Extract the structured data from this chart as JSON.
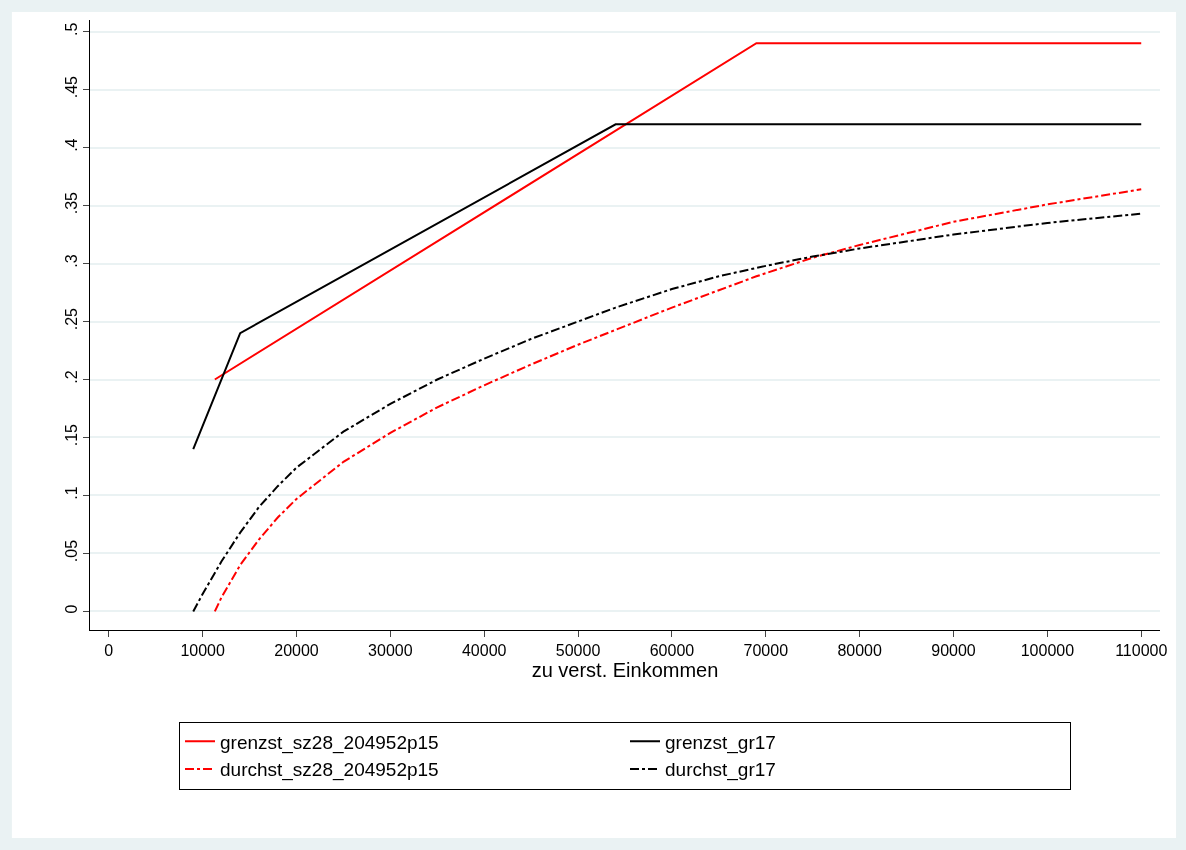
{
  "chart_data": {
    "type": "line",
    "xlabel": "zu verst. Einkommen",
    "xlim": [
      -2000,
      112000
    ],
    "xticks": [
      0,
      10000,
      20000,
      30000,
      40000,
      50000,
      60000,
      70000,
      80000,
      90000,
      100000,
      110000
    ],
    "ylim": [
      -0.016,
      0.51
    ],
    "yticks": [
      {
        "value": 0,
        "label": "0"
      },
      {
        "value": 0.05,
        "label": ".05"
      },
      {
        "value": 0.1,
        "label": ".1"
      },
      {
        "value": 0.15,
        "label": ".15"
      },
      {
        "value": 0.2,
        "label": ".2"
      },
      {
        "value": 0.25,
        "label": ".25"
      },
      {
        "value": 0.3,
        "label": ".3"
      },
      {
        "value": 0.35,
        "label": ".35"
      },
      {
        "value": 0.4,
        "label": ".4"
      },
      {
        "value": 0.45,
        "label": ".45"
      },
      {
        "value": 0.5,
        "label": ".5"
      }
    ],
    "grid": "y",
    "legend": "bottom",
    "marker": "none",
    "series": [
      {
        "name": "grenzst_sz28_204952p15",
        "color": "#ff0000",
        "line_style": "solid",
        "x": [
          11300,
          69000,
          110000
        ],
        "values": [
          0.2,
          0.49,
          0.49
        ]
      },
      {
        "name": "grenzst_gr17",
        "color": "#000000",
        "line_style": "solid",
        "x": [
          9000,
          14000,
          54000,
          110000
        ],
        "values": [
          0.14,
          0.24,
          0.42,
          0.42
        ]
      },
      {
        "name": "durchst_sz28_204952p15",
        "color": "#ff0000",
        "line_style": "dashdot",
        "x": [
          11300,
          12000,
          14000,
          16000,
          18000,
          20000,
          25000,
          30000,
          35000,
          40000,
          45000,
          50000,
          55000,
          60000,
          65000,
          69000,
          75000,
          80000,
          90000,
          100000,
          110000
        ],
        "values": [
          0,
          0.012,
          0.04,
          0.062,
          0.081,
          0.097,
          0.129,
          0.154,
          0.176,
          0.195,
          0.213,
          0.23,
          0.246,
          0.262,
          0.277,
          0.289,
          0.305,
          0.316,
          0.336,
          0.351,
          0.364
        ]
      },
      {
        "name": "durchst_gr17",
        "color": "#000000",
        "line_style": "dashdot",
        "x": [
          9000,
          10000,
          12000,
          14000,
          16000,
          18000,
          20000,
          25000,
          30000,
          35000,
          40000,
          45000,
          50000,
          54000,
          60000,
          65000,
          70000,
          75000,
          80000,
          90000,
          100000,
          110000
        ],
        "values": [
          0,
          0.015,
          0.043,
          0.068,
          0.09,
          0.108,
          0.124,
          0.155,
          0.179,
          0.2,
          0.218,
          0.235,
          0.25,
          0.262,
          0.278,
          0.289,
          0.298,
          0.306,
          0.313,
          0.325,
          0.335,
          0.343
        ]
      }
    ]
  }
}
